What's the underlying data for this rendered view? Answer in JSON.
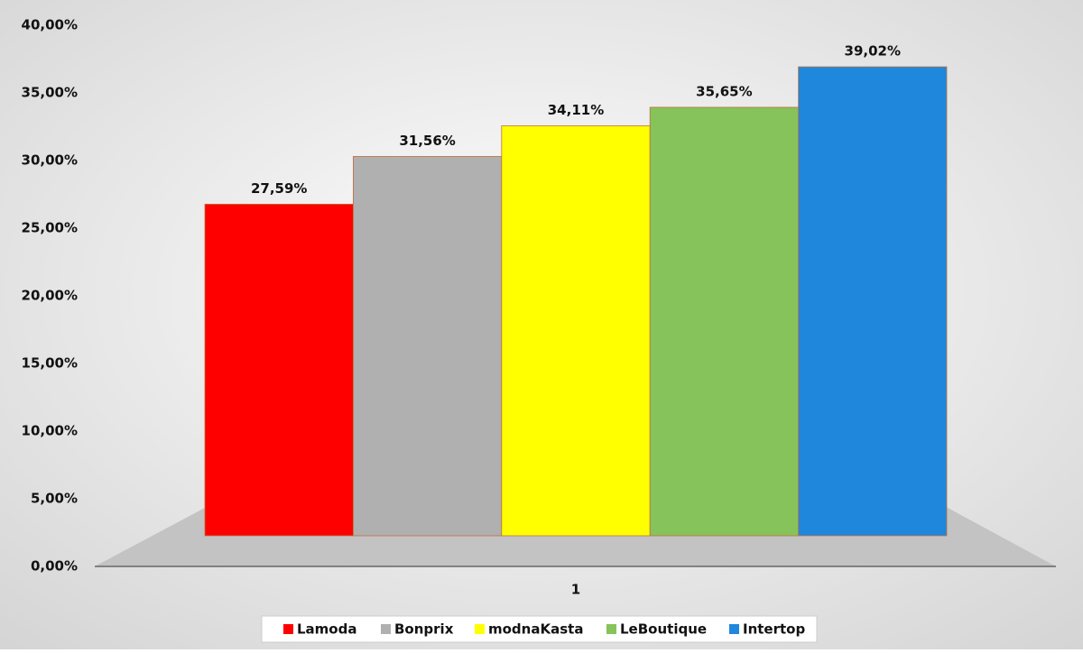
{
  "chart_data": {
    "type": "bar",
    "categories": [
      "1"
    ],
    "series": [
      {
        "name": "Lamoda",
        "color": "#ff0000",
        "values": [
          27.59
        ],
        "value_labels": [
          "27,59%"
        ]
      },
      {
        "name": "Bonprix",
        "color": "#b0b0b0",
        "values": [
          31.56
        ],
        "value_labels": [
          "31,56%"
        ]
      },
      {
        "name": "modnaKasta",
        "color": "#ffff00",
        "values": [
          34.11
        ],
        "value_labels": [
          "34,11%"
        ]
      },
      {
        "name": "LeBoutique",
        "color": "#86c35a",
        "values": [
          35.65
        ],
        "value_labels": [
          "35,65%"
        ]
      },
      {
        "name": "Intertop",
        "color": "#1f87dc",
        "values": [
          39.02
        ],
        "value_labels": [
          "39,02%"
        ]
      }
    ],
    "ylim": [
      0,
      40
    ],
    "yticks": [
      {
        "value": 0,
        "label": "0,00%"
      },
      {
        "value": 5,
        "label": "5,00%"
      },
      {
        "value": 10,
        "label": "10,00%"
      },
      {
        "value": 15,
        "label": "15,00%"
      },
      {
        "value": 20,
        "label": "20,00%"
      },
      {
        "value": 25,
        "label": "25,00%"
      },
      {
        "value": 30,
        "label": "30,00%"
      },
      {
        "value": 35,
        "label": "35,00%"
      },
      {
        "value": 40,
        "label": "40,00%"
      }
    ],
    "legend": "bottom"
  }
}
